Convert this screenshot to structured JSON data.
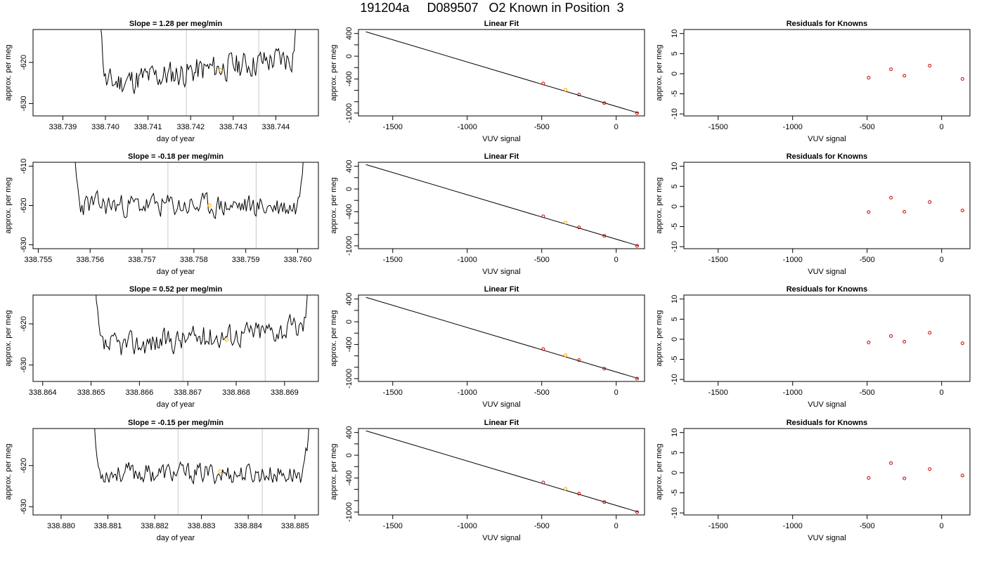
{
  "title": "191204a     D089507   O2 Known in Position  3",
  "colors": {
    "trace": "#000000",
    "vline": "#c8c8c8",
    "marker": "#ffa500",
    "known": "#cc0000",
    "fitline": "#000000"
  },
  "chart_data": [
    {
      "type": "line",
      "panel": "timeseries",
      "title": "Slope =  1.28  per meg/min",
      "xlabel": "day of year",
      "ylabel": "approx. per meg",
      "xlim": [
        338.7383,
        338.745
      ],
      "ylim": [
        -633,
        -612
      ],
      "xticks": [
        "338.739",
        "338.740",
        "338.741",
        "338.742",
        "338.743",
        "338.744"
      ],
      "yticks": [
        "-620",
        "-630"
      ],
      "trace": {
        "start": 338.7398,
        "end": 338.7446,
        "baseline": -625.5,
        "drift": 7.0,
        "noise": 1.9,
        "seed": 11
      },
      "vlines": [
        338.7419,
        338.7436
      ],
      "marker": {
        "x": 338.7427,
        "y": -621.9
      }
    },
    {
      "type": "line",
      "panel": "linear-fit",
      "title": "Linear Fit",
      "xlabel": "VUV signal",
      "ylabel": "approx. per meg",
      "xlim": [
        -1730,
        190
      ],
      "ylim": [
        -1050,
        470
      ],
      "xticks": [
        "-1500",
        "-1000",
        "-500",
        "0"
      ],
      "yticks": [
        "400",
        "0",
        "-400",
        "-1000"
      ],
      "yticks_minor": [
        200,
        -200,
        -600,
        -800
      ],
      "line": [
        [
          -1680,
          430
        ],
        [
          150,
          -1000
        ]
      ],
      "knowns": [
        [
          -490,
          -480
        ],
        [
          -250,
          -675
        ],
        [
          -80,
          -825
        ],
        [
          140,
          -1000
        ]
      ],
      "sample": [
        -340,
        -590
      ]
    },
    {
      "type": "scatter",
      "panel": "residuals",
      "title": "Residuals for Knowns",
      "xlabel": "VUV signal",
      "ylabel": "approx. per meg",
      "xlim": [
        -1730,
        190
      ],
      "ylim": [
        -10.5,
        11
      ],
      "xticks": [
        "-1500",
        "-1000",
        "-500",
        "0"
      ],
      "yticks": [
        "10",
        "5",
        "0",
        "-5",
        "-10"
      ],
      "points": [
        [
          -490,
          -1.0
        ],
        [
          -340,
          1.1
        ],
        [
          -250,
          -0.5
        ],
        [
          -80,
          2.0
        ],
        [
          140,
          -1.3
        ]
      ]
    },
    {
      "type": "line",
      "panel": "timeseries",
      "title": "Slope =  -0.18  per meg/min",
      "xlabel": "day of year",
      "ylabel": "approx. per meg",
      "xlim": [
        338.7549,
        338.7604
      ],
      "ylim": [
        -631,
        -609
      ],
      "xticks": [
        "338.755",
        "338.756",
        "338.757",
        "338.758",
        "338.759",
        "338.760"
      ],
      "yticks": [
        "-610",
        "-620",
        "-630"
      ],
      "trace": {
        "start": 338.7556,
        "end": 338.7602,
        "baseline": -619.8,
        "drift": -0.6,
        "noise": 1.7,
        "seed": 23
      },
      "vlines": [
        338.7575,
        338.7592
      ],
      "marker": {
        "x": 338.7583,
        "y": -620.0
      }
    },
    {
      "type": "line",
      "panel": "linear-fit",
      "title": "Linear Fit",
      "xlabel": "VUV signal",
      "ylabel": "approx. per meg",
      "xlim": [
        -1730,
        190
      ],
      "ylim": [
        -1050,
        470
      ],
      "xticks": [
        "-1500",
        "-1000",
        "-500",
        "0"
      ],
      "yticks": [
        "400",
        "0",
        "-400",
        "-1000"
      ],
      "yticks_minor": [
        200,
        -200,
        -600,
        -800
      ],
      "line": [
        [
          -1680,
          430
        ],
        [
          150,
          -1000
        ]
      ],
      "knowns": [
        [
          -490,
          -480
        ],
        [
          -250,
          -675
        ],
        [
          -80,
          -825
        ],
        [
          140,
          -1000
        ]
      ],
      "sample": [
        -340,
        -590
      ]
    },
    {
      "type": "scatter",
      "panel": "residuals",
      "title": "Residuals for Knowns",
      "xlabel": "VUV signal",
      "ylabel": "approx. per meg",
      "xlim": [
        -1730,
        190
      ],
      "ylim": [
        -10.5,
        11
      ],
      "xticks": [
        "-1500",
        "-1000",
        "-500",
        "0"
      ],
      "yticks": [
        "10",
        "5",
        "0",
        "-5",
        "-10"
      ],
      "points": [
        [
          -490,
          -1.4
        ],
        [
          -340,
          2.2
        ],
        [
          -250,
          -1.3
        ],
        [
          -80,
          1.1
        ],
        [
          140,
          -1.0
        ]
      ]
    },
    {
      "type": "line",
      "panel": "timeseries",
      "title": "Slope =  0.52  per meg/min",
      "xlabel": "day of year",
      "ylabel": "approx. per meg",
      "xlim": [
        338.8638,
        338.8697
      ],
      "ylim": [
        -634,
        -613
      ],
      "xticks": [
        "338.864",
        "338.865",
        "338.866",
        "338.867",
        "338.868",
        "338.869"
      ],
      "yticks": [
        "-620",
        "-630"
      ],
      "trace": {
        "start": 338.865,
        "end": 338.8696,
        "baseline": -626.0,
        "drift": 5.5,
        "noise": 1.7,
        "seed": 37
      },
      "vlines": [
        338.8669,
        338.8686
      ],
      "marker": {
        "x": 338.8678,
        "y": -623.8
      }
    },
    {
      "type": "line",
      "panel": "linear-fit",
      "title": "Linear Fit",
      "xlabel": "VUV signal",
      "ylabel": "approx. per meg",
      "xlim": [
        -1730,
        190
      ],
      "ylim": [
        -1050,
        470
      ],
      "xticks": [
        "-1500",
        "-1000",
        "-500",
        "0"
      ],
      "yticks": [
        "400",
        "0",
        "-400",
        "-1000"
      ],
      "yticks_minor": [
        200,
        -200,
        -600,
        -800
      ],
      "line": [
        [
          -1680,
          430
        ],
        [
          150,
          -1000
        ]
      ],
      "knowns": [
        [
          -490,
          -480
        ],
        [
          -250,
          -675
        ],
        [
          -80,
          -825
        ],
        [
          140,
          -1000
        ]
      ],
      "sample": [
        -340,
        -590
      ]
    },
    {
      "type": "scatter",
      "panel": "residuals",
      "title": "Residuals for Knowns",
      "xlabel": "VUV signal",
      "ylabel": "approx. per meg",
      "xlim": [
        -1730,
        190
      ],
      "ylim": [
        -10.5,
        11
      ],
      "xticks": [
        "-1500",
        "-1000",
        "-500",
        "0"
      ],
      "yticks": [
        "10",
        "5",
        "0",
        "-5",
        "-10"
      ],
      "points": [
        [
          -490,
          -0.8
        ],
        [
          -340,
          0.8
        ],
        [
          -250,
          -0.6
        ],
        [
          -80,
          1.6
        ],
        [
          140,
          -1.0
        ]
      ]
    },
    {
      "type": "line",
      "panel": "timeseries",
      "title": "Slope =  -0.15  per meg/min",
      "xlabel": "day of year",
      "ylabel": "approx. per meg",
      "xlim": [
        338.8794,
        338.8855
      ],
      "ylim": [
        -632,
        -611
      ],
      "xticks": [
        "338.880",
        "338.881",
        "338.882",
        "338.883",
        "338.884",
        "338.885"
      ],
      "yticks": [
        "-620",
        "-630"
      ],
      "trace": {
        "start": 338.8806,
        "end": 338.8854,
        "baseline": -621.7,
        "drift": -0.4,
        "noise": 1.4,
        "seed": 53
      },
      "vlines": [
        338.8825,
        338.8843
      ],
      "marker": {
        "x": 338.8834,
        "y": -621.4
      }
    },
    {
      "type": "line",
      "panel": "linear-fit",
      "title": "Linear Fit",
      "xlabel": "VUV signal",
      "ylabel": "approx. per meg",
      "xlim": [
        -1730,
        190
      ],
      "ylim": [
        -1050,
        470
      ],
      "xticks": [
        "-1500",
        "-1000",
        "-500",
        "0"
      ],
      "yticks": [
        "400",
        "0",
        "-400",
        "-1000"
      ],
      "yticks_minor": [
        200,
        -200,
        -600,
        -800
      ],
      "line": [
        [
          -1680,
          430
        ],
        [
          150,
          -1000
        ]
      ],
      "knowns": [
        [
          -490,
          -480
        ],
        [
          -250,
          -675
        ],
        [
          -80,
          -825
        ],
        [
          140,
          -1000
        ]
      ],
      "sample": [
        -340,
        -590
      ]
    },
    {
      "type": "scatter",
      "panel": "residuals",
      "title": "Residuals for Knowns",
      "xlabel": "VUV signal",
      "ylabel": "approx. per meg",
      "xlim": [
        -1730,
        190
      ],
      "ylim": [
        -10.5,
        11
      ],
      "xticks": [
        "-1500",
        "-1000",
        "-500",
        "0"
      ],
      "yticks": [
        "10",
        "5",
        "0",
        "-5",
        "-10"
      ],
      "points": [
        [
          -490,
          -1.3
        ],
        [
          -340,
          2.4
        ],
        [
          -250,
          -1.4
        ],
        [
          -80,
          0.9
        ],
        [
          140,
          -0.7
        ]
      ]
    }
  ]
}
